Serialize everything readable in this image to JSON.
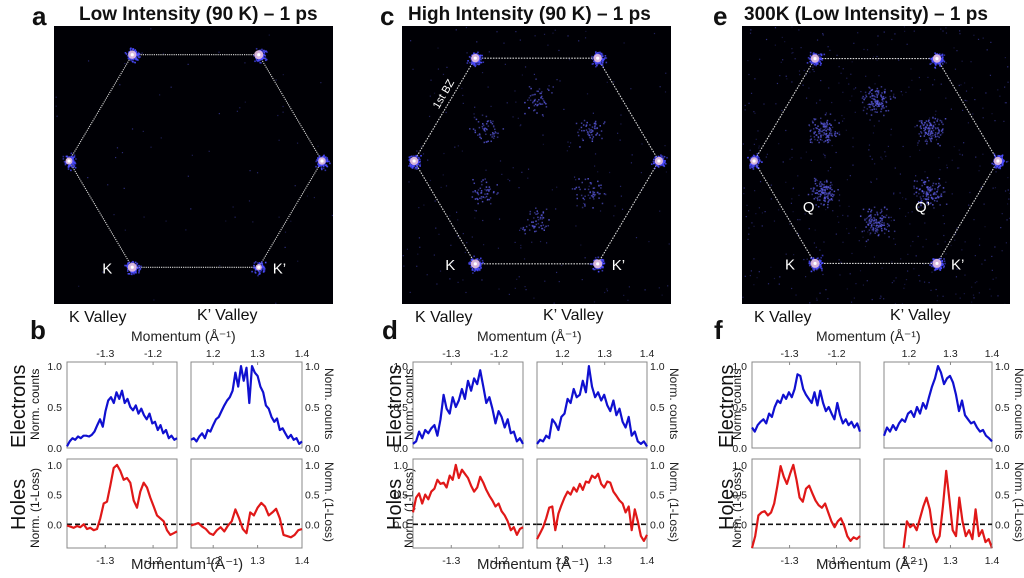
{
  "figure": {
    "panels_top": [
      {
        "letter": "a",
        "title": "Low Intensity (90 K) – 1 ps",
        "labels": {
          "K": "K",
          "Kp": "K’"
        },
        "bz_label": "",
        "q_labels": null,
        "spot_intensity": [
          0.7,
          0.9,
          1.0,
          0.8,
          0.6,
          1.0
        ],
        "q_intensity": 0.0,
        "background_noise": 0.05
      },
      {
        "letter": "c",
        "title": "High Intensity (90 K) – 1 ps",
        "labels": {
          "K": "K",
          "Kp": "K’"
        },
        "bz_label": "1st BZ",
        "q_labels": null,
        "spot_intensity": [
          0.9,
          0.9,
          0.9,
          0.9,
          1.0,
          1.0
        ],
        "q_intensity": 0.25,
        "background_noise": 0.15
      },
      {
        "letter": "e",
        "title": "300K (Low Intensity) – 1 ps",
        "labels": {
          "K": "K",
          "Kp": "K’"
        },
        "bz_label": "",
        "q_labels": {
          "Q": "Q",
          "Qp": "Q’"
        },
        "spot_intensity": [
          0.8,
          0.9,
          0.9,
          0.9,
          1.0,
          1.0
        ],
        "q_intensity": 0.55,
        "background_noise": 0.35
      }
    ],
    "panels_bottom": [
      {
        "letter": "b",
        "k_valley": "K Valley",
        "kp_valley": "K’ Valley",
        "momentum_label": "Momentum (Å⁻¹)"
      },
      {
        "letter": "d",
        "k_valley": "K Valley",
        "kp_valley": "K’ Valley",
        "momentum_label": "Momentum (Å⁻¹)"
      },
      {
        "letter": "f",
        "k_valley": "K Valley",
        "kp_valley": "K’ Valley",
        "momentum_label": "Momentum (Å⁻¹)"
      }
    ],
    "row_labels": {
      "electrons": "Electrons",
      "holes": "Holes"
    },
    "ylabels": {
      "electrons": "Norm. counts",
      "holes": "Norm. (1-Loss)"
    },
    "colors": {
      "electrons": "#1010d0",
      "holes": "#e01818",
      "zero_line": "#111111",
      "frame": "#888888"
    }
  },
  "chart_data": [
    {
      "panel": "b",
      "type": "line",
      "axes": {
        "k_xlim": [
          -1.38,
          -1.15
        ],
        "kp_xlim": [
          1.15,
          1.4
        ],
        "k_xticks": [
          -1.3,
          -1.2
        ],
        "kp_xticks": [
          1.2,
          1.3,
          1.4
        ],
        "electrons_ylim": [
          0.0,
          1.05
        ],
        "holes_ylim": [
          -0.4,
          1.1
        ],
        "yticks": [
          0.0,
          0.5,
          1.0
        ]
      },
      "electrons_k": [
        0.02,
        0.08,
        0.12,
        0.1,
        0.14,
        0.12,
        0.15,
        0.15,
        0.14,
        0.16,
        0.2,
        0.28,
        0.35,
        0.26,
        0.45,
        0.58,
        0.62,
        0.55,
        0.68,
        0.6,
        0.7,
        0.55,
        0.6,
        0.5,
        0.46,
        0.52,
        0.42,
        0.48,
        0.4,
        0.35,
        0.42,
        0.3,
        0.32,
        0.22,
        0.28,
        0.18,
        0.22,
        0.12,
        0.15,
        0.1,
        0.12
      ],
      "electrons_kp": [
        0.1,
        0.12,
        0.08,
        0.14,
        0.18,
        0.12,
        0.22,
        0.2,
        0.28,
        0.35,
        0.38,
        0.45,
        0.52,
        0.58,
        0.62,
        0.7,
        0.92,
        0.75,
        1.0,
        0.82,
        0.98,
        0.55,
        1.0,
        0.92,
        0.88,
        0.75,
        0.68,
        0.52,
        0.48,
        0.38,
        0.32,
        0.36,
        0.22,
        0.24,
        0.18,
        0.12,
        0.16,
        0.1,
        0.12,
        0.05,
        0.08
      ],
      "holes_k": [
        -0.02,
        -0.04,
        -0.06,
        -0.03,
        -0.05,
        0.0,
        -0.08,
        -0.06,
        -0.1,
        -0.08,
        0.1,
        0.35,
        0.38,
        0.65,
        0.95,
        1.0,
        0.9,
        0.75,
        0.78,
        0.7,
        0.4,
        0.28,
        0.55,
        0.7,
        0.62,
        0.45,
        0.3,
        0.15,
        0.1,
        0.05,
        -0.1,
        -0.18,
        -0.15,
        -0.12
      ],
      "holes_kp": [
        -0.02,
        0.0,
        0.02,
        -0.04,
        -0.08,
        -0.15,
        -0.18,
        -0.1,
        -0.05,
        -0.12,
        -0.02,
        0.05,
        0.25,
        0.1,
        -0.08,
        -0.15,
        0.2,
        0.15,
        0.28,
        0.36,
        0.3,
        0.15,
        0.2,
        0.26,
        0.1,
        -0.18,
        -0.2,
        -0.22,
        -0.18,
        -0.1,
        -0.08
      ]
    },
    {
      "panel": "d",
      "type": "line",
      "axes": {
        "k_xlim": [
          -1.38,
          -1.15
        ],
        "kp_xlim": [
          1.14,
          1.4
        ],
        "k_xticks": [
          -1.3,
          -1.2
        ],
        "kp_xticks": [
          1.2,
          1.3,
          1.4
        ],
        "electrons_ylim": [
          0.0,
          1.05
        ],
        "holes_ylim": [
          -0.4,
          1.1
        ],
        "yticks": [
          0.0,
          0.5,
          1.0
        ]
      },
      "electrons_k": [
        0.05,
        0.08,
        0.2,
        0.12,
        0.22,
        0.18,
        0.24,
        0.28,
        0.15,
        0.35,
        0.65,
        0.48,
        0.42,
        0.62,
        0.5,
        0.58,
        0.72,
        0.6,
        0.82,
        0.7,
        0.85,
        0.78,
        0.95,
        0.75,
        0.55,
        0.62,
        0.48,
        0.3,
        0.45,
        0.38,
        0.25,
        0.35,
        0.18,
        0.2,
        0.08,
        0.12,
        0.05
      ],
      "electrons_kp": [
        0.05,
        0.1,
        0.08,
        0.15,
        0.12,
        0.35,
        0.3,
        0.22,
        0.38,
        0.42,
        0.6,
        0.55,
        0.72,
        0.62,
        0.65,
        0.82,
        0.68,
        1.0,
        0.75,
        0.62,
        0.68,
        0.58,
        0.65,
        0.52,
        0.45,
        0.58,
        0.4,
        0.48,
        0.32,
        0.25,
        0.38,
        0.15,
        0.2,
        0.08,
        0.05,
        0.08,
        0.02
      ],
      "holes_k": [
        0.2,
        0.45,
        0.52,
        0.35,
        0.5,
        0.42,
        0.55,
        0.6,
        0.75,
        0.68,
        0.7,
        0.62,
        0.82,
        0.75,
        1.0,
        0.78,
        0.92,
        0.85,
        0.78,
        0.65,
        0.55,
        0.62,
        0.8,
        0.7,
        0.58,
        0.48,
        0.4,
        0.3,
        0.35,
        0.22,
        0.15,
        0.05,
        -0.1,
        -0.05,
        -0.18,
        -0.08,
        -0.05
      ],
      "holes_kp": [
        -0.25,
        -0.15,
        -0.05,
        0.1,
        0.28,
        0.3,
        -0.1,
        0.18,
        0.32,
        0.45,
        0.55,
        0.5,
        0.62,
        0.55,
        0.68,
        0.58,
        0.72,
        0.7,
        0.82,
        0.78,
        0.85,
        0.68,
        0.62,
        0.72,
        0.7,
        0.55,
        0.48,
        0.4,
        0.35,
        0.2,
        0.3,
        -0.1,
        0.25,
        0.05,
        -0.2,
        -0.28,
        -0.18
      ]
    },
    {
      "panel": "f",
      "type": "line",
      "axes": {
        "k_xlim": [
          -1.38,
          -1.15
        ],
        "kp_xlim": [
          1.14,
          1.4
        ],
        "k_xticks": [
          -1.3,
          -1.2
        ],
        "kp_xticks": [
          1.2,
          1.3,
          1.4
        ],
        "electrons_ylim": [
          0.0,
          1.05
        ],
        "holes_ylim": [
          -0.4,
          1.1
        ],
        "yticks": [
          0.0,
          0.5,
          1.0
        ]
      },
      "electrons_k": [
        0.25,
        0.2,
        0.28,
        0.32,
        0.35,
        0.3,
        0.42,
        0.38,
        0.5,
        0.58,
        0.55,
        0.65,
        0.6,
        0.68,
        0.62,
        0.72,
        0.9,
        0.88,
        0.72,
        0.65,
        0.6,
        0.55,
        0.68,
        0.52,
        0.7,
        0.55,
        0.45,
        0.5,
        0.42,
        0.35,
        0.55,
        0.4,
        0.3,
        0.35,
        0.28,
        0.32,
        0.25,
        0.3,
        0.2
      ],
      "electrons_kp": [
        0.15,
        0.25,
        0.2,
        0.28,
        0.22,
        0.3,
        0.35,
        0.32,
        0.42,
        0.45,
        0.38,
        0.5,
        0.42,
        0.55,
        0.48,
        0.62,
        0.75,
        0.85,
        1.0,
        0.92,
        0.78,
        0.85,
        0.88,
        0.8,
        0.65,
        0.45,
        0.58,
        0.4,
        0.35,
        0.3,
        0.32,
        0.25,
        0.2,
        0.22,
        0.15,
        0.12,
        0.08
      ],
      "holes_k": [
        -0.5,
        -0.2,
        0.15,
        0.2,
        0.22,
        0.15,
        0.2,
        0.35,
        0.65,
        0.98,
        0.8,
        0.68,
        0.85,
        1.0,
        0.75,
        0.45,
        0.38,
        0.6,
        0.65,
        0.52,
        0.4,
        0.32,
        0.28,
        0.35,
        0.2,
        0.05,
        -0.05,
        0.05,
        0.1,
        -0.02,
        -0.2,
        -0.28,
        -0.22,
        -0.25,
        -0.2
      ],
      "holes_kp": [
        null,
        null,
        null,
        null,
        null,
        null,
        -0.4,
        0.05,
        -0.05,
        0.0,
        -0.1,
        0.1,
        0.3,
        0.45,
        0.25,
        -0.15,
        -0.3,
        -0.2,
        0.3,
        0.9,
        0.4,
        -0.1,
        -0.2,
        0.45,
        0.05,
        -0.2,
        -0.1,
        -0.25,
        0.25,
        -0.2,
        -0.1,
        -0.3,
        -0.25,
        -0.45
      ]
    }
  ]
}
